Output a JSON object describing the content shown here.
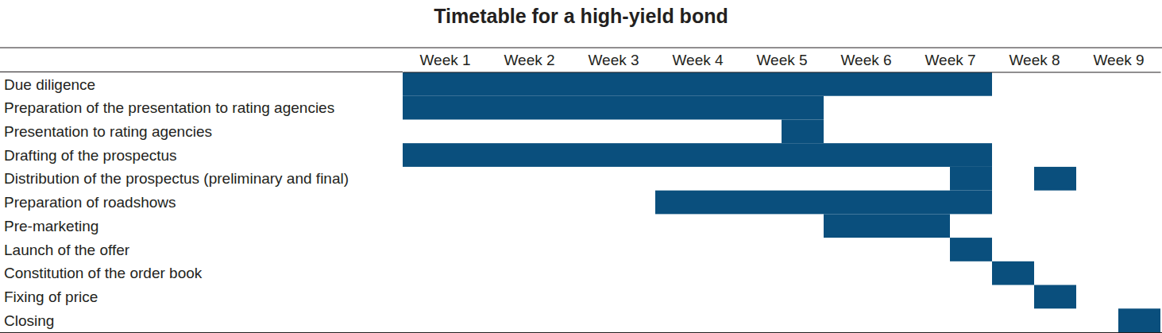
{
  "chart_data": {
    "type": "gantt",
    "title": "Timetable for a high-yield bond",
    "color": "#0a4f7d",
    "xlim": [
      0,
      9
    ],
    "xticks": [
      {
        "value": 0.5,
        "label": "Week 1"
      },
      {
        "value": 1.5,
        "label": "Week 2"
      },
      {
        "value": 2.5,
        "label": "Week 3"
      },
      {
        "value": 3.5,
        "label": "Week 4"
      },
      {
        "value": 4.5,
        "label": "Week 5"
      },
      {
        "value": 5.5,
        "label": "Week 6"
      },
      {
        "value": 6.5,
        "label": "Week 7"
      },
      {
        "value": 7.5,
        "label": "Week 8"
      },
      {
        "value": 8.5,
        "label": "Week 9"
      }
    ],
    "grid": false,
    "tasks": [
      {
        "name": "Due diligence",
        "start": [
          0
        ],
        "end": [
          7
        ]
      },
      {
        "name": "Preparation of the presentation to rating agencies",
        "start": [
          0
        ],
        "end": [
          5
        ]
      },
      {
        "name": "Presentation to rating agencies",
        "start": [
          4.5
        ],
        "end": [
          5
        ]
      },
      {
        "name": "Drafting of the prospectus",
        "start": [
          0
        ],
        "end": [
          7
        ]
      },
      {
        "name": "Distribution of the prospectus (preliminary and final)",
        "start": [
          6.5,
          7.5
        ],
        "end": [
          7,
          8
        ]
      },
      {
        "name": "Preparation of roadshows",
        "start": [
          3
        ],
        "end": [
          7
        ]
      },
      {
        "name": "Pre-marketing",
        "start": [
          5
        ],
        "end": [
          6.5
        ]
      },
      {
        "name": "Launch of the offer",
        "start": [
          6.5
        ],
        "end": [
          7
        ]
      },
      {
        "name": "Constitution of the order book",
        "start": [
          7
        ],
        "end": [
          7.5
        ]
      },
      {
        "name": "Fixing of price",
        "start": [
          7.5
        ],
        "end": [
          8
        ]
      },
      {
        "name": "Closing",
        "start": [
          8.5
        ],
        "end": [
          9
        ]
      }
    ]
  }
}
